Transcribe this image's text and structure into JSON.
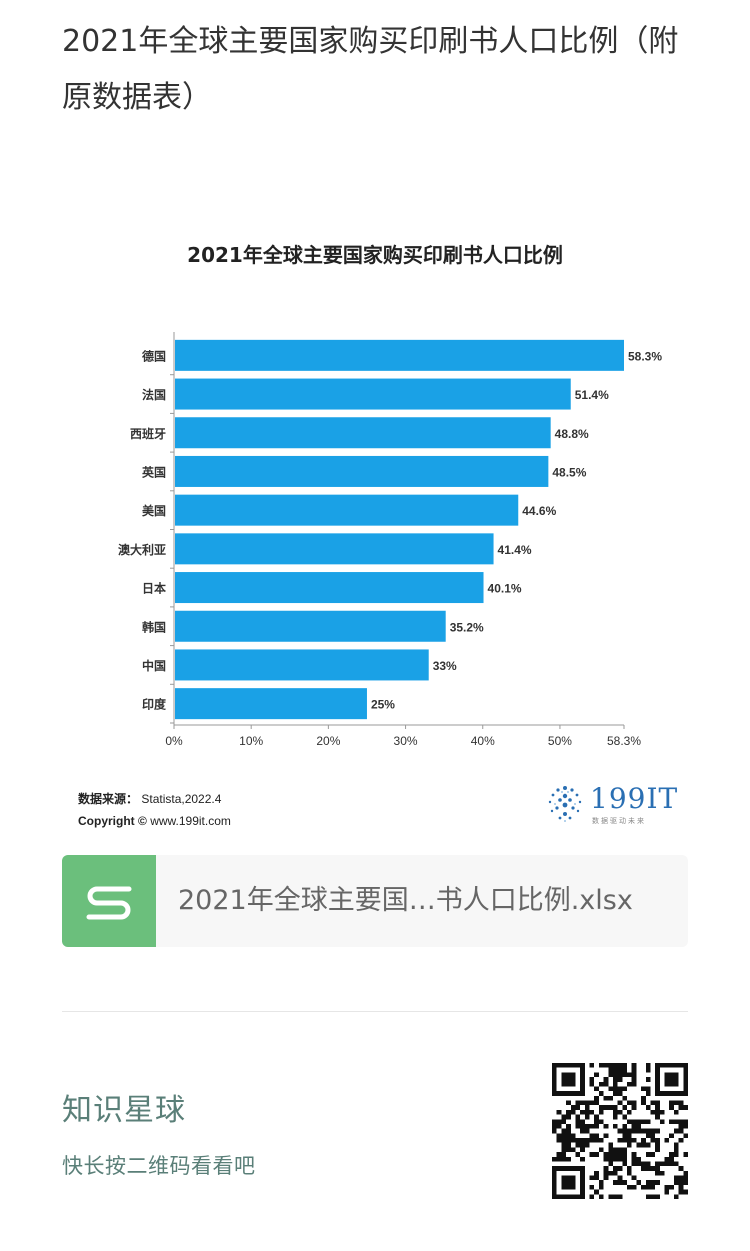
{
  "page": {
    "title": "2021年全球主要国家购买印刷书人口比例（附原数据表）"
  },
  "chart_data": {
    "type": "bar",
    "orientation": "horizontal",
    "title": "2021年全球主要国家购买印刷书人口比例",
    "categories": [
      "德国",
      "法国",
      "西班牙",
      "英国",
      "美国",
      "澳大利亚",
      "日本",
      "韩国",
      "中国",
      "印度"
    ],
    "values": [
      58.3,
      51.4,
      48.8,
      48.5,
      44.6,
      41.4,
      40.1,
      35.2,
      33,
      25
    ],
    "value_labels": [
      "58.3%",
      "51.4%",
      "48.8%",
      "48.5%",
      "44.6%",
      "41.4%",
      "40.1%",
      "35.2%",
      "33%",
      "25%"
    ],
    "xticks": [
      "0%",
      "10%",
      "20%",
      "30%",
      "40%",
      "50%",
      "58.3%"
    ],
    "xtick_values": [
      0,
      10,
      20,
      30,
      40,
      50,
      58.3
    ],
    "xlim": [
      0,
      58.3
    ],
    "bar_color": "#1aa1e6",
    "grid": false,
    "legend": "none"
  },
  "chart_footer": {
    "source_label": "数据来源：",
    "source_value": "Statista,2022.4",
    "copyright_label": "Copyright ©",
    "copyright_value": "www.199it.com",
    "brand_name": "199IT",
    "brand_tag": "数据驱动未来"
  },
  "attachment": {
    "icon": "s-file-icon",
    "filename": "2021年全球主要国…书人口比例.xlsx",
    "icon_color": "#6bbf7c"
  },
  "promo": {
    "title": "知识星球",
    "subtitle": "快长按二维码看看吧",
    "qr_icon": "qr-code-icon"
  }
}
